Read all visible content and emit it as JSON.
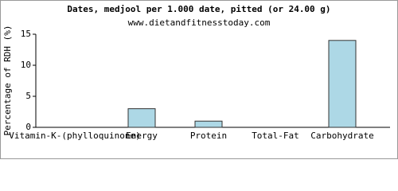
{
  "chart_data": {
    "type": "bar",
    "title": "Dates, medjool per 1.000 date, pitted (or 24.00 g)",
    "subtitle": "www.dietandfitnesstoday.com",
    "y_label": "Percentage of RDH (%)",
    "categories": [
      "Vitamin-K-(phylloquinone)",
      "Energy",
      "Protein",
      "Total-Fat",
      "Carbohydrate"
    ],
    "values": [
      0,
      3,
      1,
      0,
      14
    ],
    "color": "#add8e6",
    "ylim": [
      0,
      15
    ],
    "yticks": [
      0,
      5,
      10,
      15
    ]
  }
}
